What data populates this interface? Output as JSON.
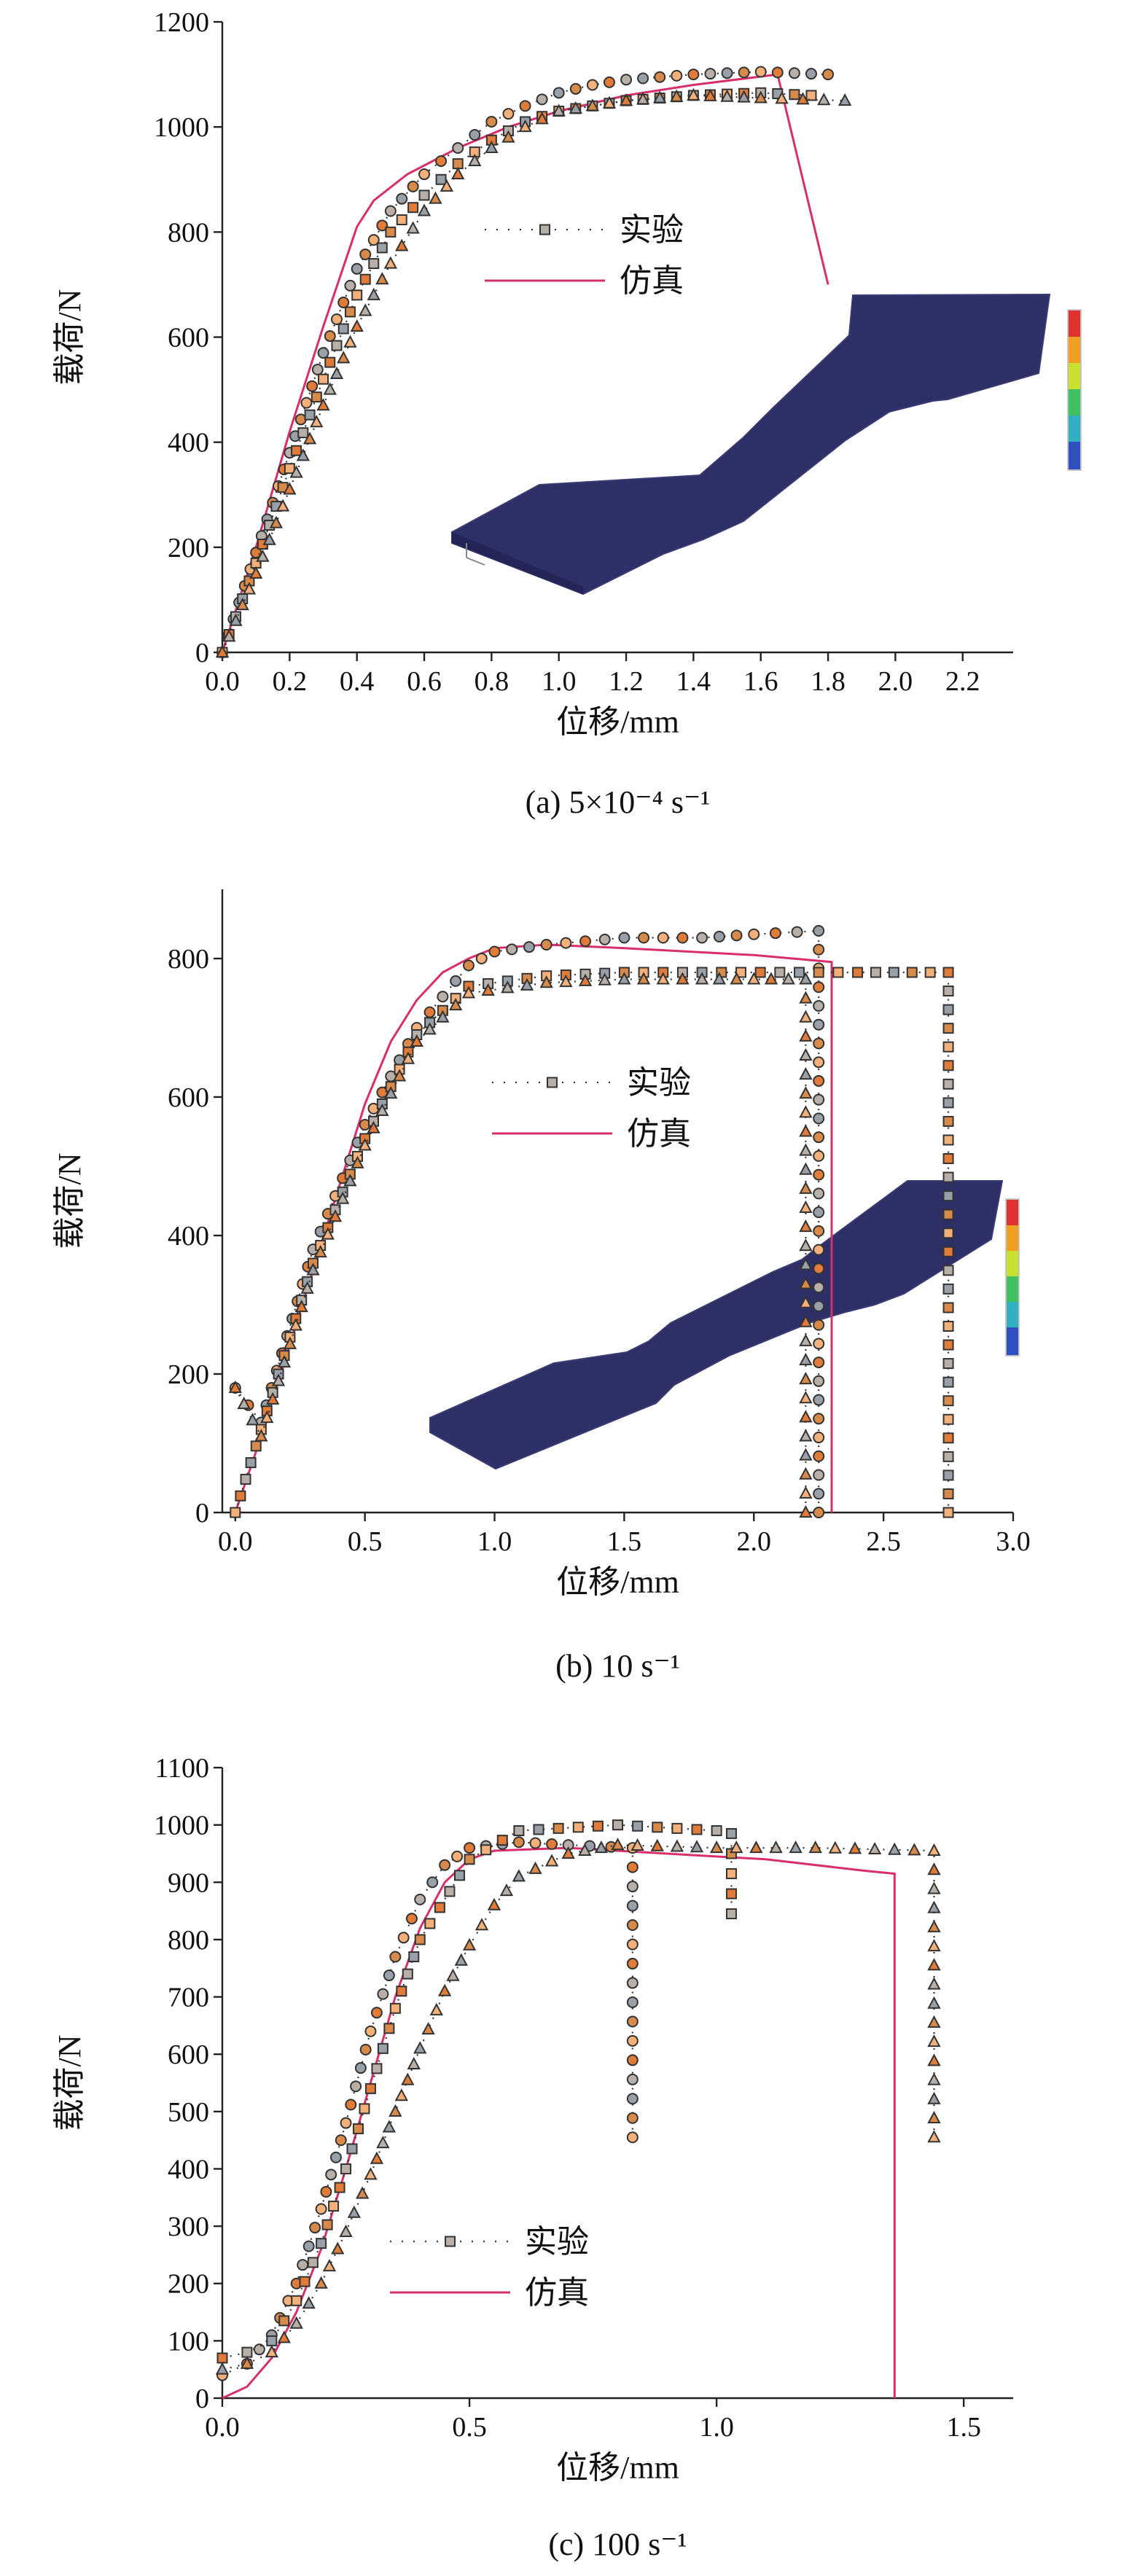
{
  "colors": {
    "simulation": "#d62f6b",
    "exp_dots": "#333333",
    "marker_stroke": "#333333",
    "marker_fills": [
      "#f3b07a",
      "#e07b3a",
      "#b8b0a8",
      "#9aa0a8",
      "#d88a4a"
    ],
    "specimen": "#2e2f66"
  },
  "chart_data": [
    {
      "id": "a",
      "type": "line",
      "caption": "(a) 5×10⁻⁴ s⁻¹",
      "xlabel": "位移/mm",
      "ylabel": "载荷/N",
      "xlim": [
        0,
        2.35
      ],
      "ylim": [
        0,
        1200
      ],
      "xticks": [
        "0.0",
        "0.2",
        "0.4",
        "0.6",
        "0.8",
        "1.0",
        "1.2",
        "1.4",
        "1.6",
        "1.8",
        "2.0",
        "2.2"
      ],
      "yticks": [
        "0",
        "200",
        "400",
        "600",
        "800",
        "1000",
        "1200"
      ],
      "legend": {
        "placement": "upper-middle",
        "items": [
          "实验",
          "仿真"
        ]
      },
      "inset": "fem-specimen-contour",
      "series": [
        {
          "name": "仿真",
          "style": "solid",
          "x": [
            0,
            0.1,
            0.2,
            0.3,
            0.4,
            0.45,
            0.55,
            0.7,
            0.85,
            1.0,
            1.2,
            1.4,
            1.65,
            1.8
          ],
          "y": [
            0,
            200,
            420,
            620,
            810,
            860,
            910,
            960,
            1000,
            1030,
            1060,
            1080,
            1100,
            700
          ]
        },
        {
          "name": "实验",
          "style": "dotted-circles",
          "x": [
            0,
            0.1,
            0.2,
            0.3,
            0.4,
            0.5,
            0.6,
            0.7,
            0.8,
            0.9,
            1.0,
            1.1,
            1.2,
            1.4,
            1.6,
            1.8
          ],
          "y": [
            0,
            190,
            380,
            570,
            730,
            840,
            910,
            960,
            1010,
            1040,
            1065,
            1080,
            1090,
            1100,
            1105,
            1100
          ]
        },
        {
          "name": "实验",
          "style": "dotted-squares",
          "x": [
            0,
            0.1,
            0.2,
            0.3,
            0.4,
            0.5,
            0.6,
            0.7,
            0.8,
            0.9,
            1.0,
            1.2,
            1.4,
            1.6,
            1.75
          ],
          "y": [
            0,
            170,
            350,
            520,
            680,
            800,
            870,
            930,
            975,
            1010,
            1030,
            1050,
            1060,
            1065,
            1060
          ]
        },
        {
          "name": "实验",
          "style": "dotted-triangles",
          "x": [
            0,
            0.1,
            0.2,
            0.3,
            0.4,
            0.5,
            0.6,
            0.7,
            0.8,
            0.9,
            1.0,
            1.2,
            1.4,
            1.6,
            1.85
          ],
          "y": [
            0,
            150,
            310,
            470,
            620,
            740,
            840,
            910,
            960,
            1000,
            1030,
            1050,
            1060,
            1055,
            1050
          ]
        }
      ]
    },
    {
      "id": "b",
      "type": "line",
      "caption": "(b) 10 s⁻¹",
      "xlabel": "位移/mm",
      "ylabel": "载荷/N",
      "xlim": [
        -0.05,
        3.0
      ],
      "ylim": [
        0,
        900
      ],
      "xticks": [
        "0.0",
        "0.5",
        "1.0",
        "1.5",
        "2.0",
        "2.5",
        "3.0"
      ],
      "yticks": [
        "0",
        "200",
        "400",
        "600",
        "800"
      ],
      "legend": {
        "placement": "upper-middle",
        "items": [
          "实验",
          "仿真"
        ]
      },
      "inset": "fem-specimen-contour",
      "series": [
        {
          "name": "仿真",
          "style": "solid",
          "x": [
            0,
            0.1,
            0.2,
            0.3,
            0.4,
            0.5,
            0.6,
            0.7,
            0.8,
            0.9,
            1.0,
            1.2,
            1.5,
            2.0,
            2.3,
            2.3
          ],
          "y": [
            0,
            110,
            230,
            350,
            470,
            590,
            680,
            740,
            780,
            800,
            815,
            820,
            815,
            805,
            795,
            0
          ]
        },
        {
          "name": "实验",
          "style": "dotted-circles",
          "x": [
            0,
            0.1,
            0.3,
            0.5,
            0.7,
            0.9,
            1.0,
            1.2,
            1.5,
            1.8,
            2.0,
            2.25,
            2.25
          ],
          "y": [
            180,
            130,
            380,
            560,
            700,
            790,
            810,
            820,
            830,
            830,
            835,
            840,
            0
          ]
        },
        {
          "name": "实验",
          "style": "dotted-squares",
          "x": [
            0,
            0.1,
            0.3,
            0.5,
            0.7,
            0.9,
            1.2,
            1.5,
            1.8,
            2.1,
            2.4,
            2.75,
            2.75
          ],
          "y": [
            0,
            120,
            360,
            540,
            690,
            760,
            775,
            780,
            780,
            780,
            780,
            780,
            0
          ]
        },
        {
          "name": "实验",
          "style": "dotted-triangles",
          "x": [
            0,
            0.1,
            0.3,
            0.5,
            0.7,
            0.9,
            1.2,
            1.5,
            1.8,
            2.0,
            2.2,
            2.2
          ],
          "y": [
            180,
            110,
            350,
            530,
            680,
            750,
            765,
            770,
            770,
            770,
            770,
            0
          ]
        }
      ]
    },
    {
      "id": "c",
      "type": "line",
      "caption": "(c) 100 s⁻¹",
      "xlabel": "位移/mm",
      "ylabel": "载荷/N",
      "xlim": [
        0,
        1.6
      ],
      "ylim": [
        0,
        1100
      ],
      "xticks": [
        "0.0",
        "0.5",
        "1.0",
        "1.5"
      ],
      "yticks": [
        "0",
        "100",
        "200",
        "300",
        "400",
        "500",
        "600",
        "700",
        "800",
        "900",
        "1000",
        "1100"
      ],
      "legend": {
        "placement": "lower-left",
        "items": [
          "实验",
          "仿真"
        ]
      },
      "series": [
        {
          "name": "仿真",
          "style": "solid",
          "x": [
            0,
            0.05,
            0.1,
            0.15,
            0.2,
            0.25,
            0.3,
            0.35,
            0.4,
            0.45,
            0.5,
            0.55,
            0.7,
            0.9,
            1.1,
            1.3,
            1.36,
            1.36
          ],
          "y": [
            0,
            20,
            70,
            150,
            260,
            400,
            550,
            700,
            820,
            900,
            940,
            955,
            960,
            950,
            940,
            920,
            915,
            0
          ]
        },
        {
          "name": "实验",
          "style": "dotted-circles",
          "x": [
            0,
            0.05,
            0.1,
            0.15,
            0.2,
            0.25,
            0.3,
            0.35,
            0.4,
            0.45,
            0.5,
            0.6,
            0.7,
            0.83,
            0.83
          ],
          "y": [
            40,
            60,
            110,
            200,
            330,
            480,
            640,
            770,
            870,
            930,
            960,
            970,
            965,
            960,
            455
          ]
        },
        {
          "name": "实验",
          "style": "dotted-squares",
          "x": [
            0,
            0.05,
            0.1,
            0.15,
            0.2,
            0.25,
            0.3,
            0.35,
            0.4,
            0.5,
            0.6,
            0.8,
            1.0,
            1.03,
            1.03
          ],
          "y": [
            70,
            80,
            100,
            170,
            270,
            400,
            540,
            680,
            800,
            940,
            990,
            1000,
            990,
            985,
            845
          ]
        },
        {
          "name": "实验",
          "style": "dotted-triangles",
          "x": [
            0,
            0.05,
            0.1,
            0.15,
            0.2,
            0.25,
            0.3,
            0.35,
            0.4,
            0.45,
            0.5,
            0.55,
            0.6,
            0.7,
            0.8,
            1.0,
            1.2,
            1.44,
            1.44
          ],
          "y": [
            50,
            60,
            80,
            130,
            200,
            290,
            390,
            500,
            610,
            710,
            790,
            860,
            910,
            950,
            965,
            960,
            960,
            955,
            455
          ]
        }
      ]
    }
  ]
}
